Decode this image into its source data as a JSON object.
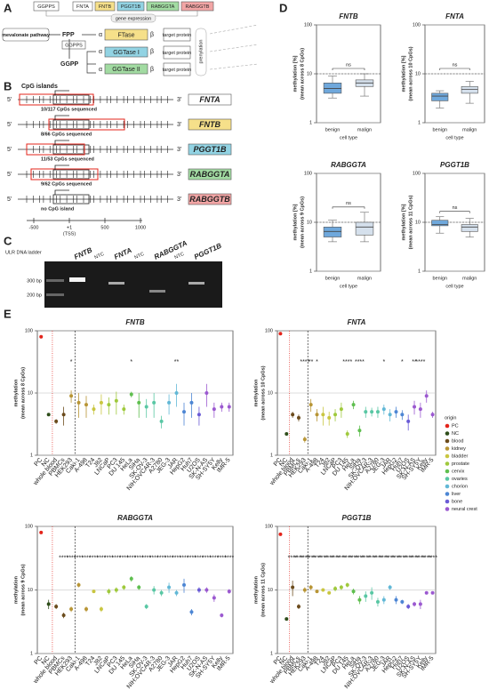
{
  "panel_labels": [
    "A",
    "B",
    "C",
    "D",
    "E"
  ],
  "pathway": {
    "genes": [
      "GGPPS",
      "FNTA",
      "FNTB",
      "PGGT1B",
      "RABGGTA",
      "RABGGTB"
    ],
    "gene_expression": "gene expression",
    "source": "mevalonate pathway",
    "fpp": "FPP",
    "enzyme": "GGPPS",
    "ggpp": "GGPP",
    "alpha": "α",
    "beta": "β",
    "enzymes": [
      "FTase",
      "GGTase I",
      "GGTase II"
    ],
    "target": "target protein",
    "prenylation": "prenylation"
  },
  "cpg": {
    "title": "CpG islands",
    "five": "5'",
    "three": "3'",
    "genes": [
      {
        "name": "FNTA",
        "note": "10/117 CpGs sequenced"
      },
      {
        "name": "FNTB",
        "note": "8/66 CpGs sequenced"
      },
      {
        "name": "PGGT1B",
        "note": "11/53 CpGs sequenced"
      },
      {
        "name": "RABGGTA",
        "note": "9/62 CpGs sequenced"
      },
      {
        "name": "RABGGTB",
        "note": "no CpG island"
      }
    ],
    "axis": [
      "-500",
      "+1",
      "500",
      "1000"
    ],
    "tss": "(TSS)"
  },
  "gel": {
    "ladder": "ULR DNA ladder",
    "sizes": [
      "300 bp",
      "200 bp"
    ],
    "lanes": [
      "FNTB",
      "NTC",
      "FNTA",
      "NTC",
      "RABGGTA",
      "NTC",
      "PGGT1B"
    ]
  },
  "legend": {
    "title": "origin",
    "items": [
      {
        "name": "PC",
        "color": "#e3241b"
      },
      {
        "name": "NC",
        "color": "#2e4d1a"
      },
      {
        "name": "blood",
        "color": "#6b4b1c"
      },
      {
        "name": "kidney",
        "color": "#b89535"
      },
      {
        "name": "bladder",
        "color": "#c9c640"
      },
      {
        "name": "prostate",
        "color": "#9fc93c"
      },
      {
        "name": "cervix",
        "color": "#5fbf4f"
      },
      {
        "name": "ovaries",
        "color": "#59c7a4"
      },
      {
        "name": "chorion",
        "color": "#62b8d6"
      },
      {
        "name": "liver",
        "color": "#4d86d4"
      },
      {
        "name": "bone",
        "color": "#6a5bd6"
      },
      {
        "name": "neural crest",
        "color": "#9b59d0"
      }
    ]
  },
  "chart_data": [
    {
      "type": "box",
      "title": "FNTB",
      "ylabel": [
        "methylation [%]",
        "(mean across 8 CpGs)"
      ],
      "xlabel": "cell type",
      "categories": [
        "benign",
        "malign"
      ],
      "colors": [
        "#6fa8dc",
        "#d5e0ec"
      ],
      "boxes": [
        {
          "min": 3.2,
          "q1": 4,
          "median": 5,
          "q3": 6.5,
          "max": 9
        },
        {
          "min": 3.5,
          "q1": 5.5,
          "median": 6.5,
          "q3": 7.5,
          "max": 10
        }
      ],
      "annotation": "ns",
      "reference_line": 10,
      "log": true,
      "ylim": [
        1,
        100
      ],
      "yticks": [
        1,
        10,
        100
      ],
      "grid": true
    },
    {
      "type": "box",
      "title": "FNTA",
      "ylabel": [
        "methylation [%]",
        "(mean across 10 CpGs)"
      ],
      "xlabel": "cell type",
      "categories": [
        "benign",
        "malign"
      ],
      "colors": [
        "#6fa8dc",
        "#d5e0ec"
      ],
      "boxes": [
        {
          "min": 2,
          "q1": 2.8,
          "median": 3.5,
          "q3": 4,
          "max": 4.5
        },
        {
          "min": 2.5,
          "q1": 4,
          "median": 4.8,
          "q3": 5.5,
          "max": 7
        }
      ],
      "annotation": "ns",
      "reference_line": 10,
      "log": true,
      "ylim": [
        1,
        100
      ],
      "yticks": [
        1,
        10,
        100
      ],
      "grid": true
    },
    {
      "type": "box",
      "title": "RABGGTA",
      "ylabel": [
        "methylation [%]",
        "(mean across 9 CpGs)"
      ],
      "xlabel": "cell type",
      "categories": [
        "benign",
        "malign"
      ],
      "colors": [
        "#6fa8dc",
        "#d5e0ec"
      ],
      "boxes": [
        {
          "min": 4,
          "q1": 5,
          "median": 6.5,
          "q3": 8,
          "max": 11
        },
        {
          "min": 4,
          "q1": 5.5,
          "median": 8,
          "q3": 10,
          "max": 16
        }
      ],
      "annotation": "ns",
      "reference_line": 10,
      "log": true,
      "ylim": [
        1,
        100
      ],
      "yticks": [
        1,
        10,
        100
      ],
      "grid": true
    },
    {
      "type": "box",
      "title": "PGGT1B",
      "ylabel": [
        "methylation [%]",
        "(mean across 11 CpGs)"
      ],
      "xlabel": "cell type",
      "categories": [
        "benign",
        "malign"
      ],
      "colors": [
        "#6fa8dc",
        "#d5e0ec"
      ],
      "boxes": [
        {
          "min": 6,
          "q1": 8.5,
          "median": 9,
          "q3": 11,
          "max": 13
        },
        {
          "min": 5,
          "q1": 6.5,
          "median": 8,
          "q3": 9,
          "max": 12
        }
      ],
      "annotation": "ns",
      "reference_line": 10,
      "log": true,
      "ylim": [
        1,
        100
      ],
      "yticks": [
        1,
        10,
        100
      ],
      "grid": true
    },
    {
      "type": "dot",
      "title": "FNTB",
      "ylabel": [
        "methylation",
        "(mean across 8 CpGs)"
      ],
      "categories": [
        "PC",
        "NC",
        "whole blood",
        "PBMCs",
        "HEK293",
        "Caki-1",
        "A-498",
        "T24",
        "J82",
        "LNCaP",
        "PC3",
        "DU 145",
        "HeLa",
        "SiHa",
        "SK-OV-3",
        "NIH:OVCAR-3",
        "A2780",
        "JEG-3",
        "JAR",
        "HepG2",
        "Huh7",
        "U2OS",
        "SK-N-AS",
        "SH-SY5Y",
        "Kelly",
        "IMR-5"
      ],
      "values": [
        80,
        4.5,
        3.5,
        4.5,
        9,
        7,
        6.5,
        5.5,
        7,
        6.5,
        7.5,
        5.5,
        9.5,
        7,
        6,
        7,
        3.5,
        7,
        10,
        5,
        7,
        4.5,
        10,
        5.5,
        6,
        6
      ],
      "errors": [
        0,
        0,
        0.3,
        1.5,
        2,
        3,
        2.5,
        1,
        2.5,
        2,
        3,
        1,
        1,
        3,
        2,
        3,
        0.8,
        2.5,
        4,
        2,
        3,
        1.5,
        4,
        1.5,
        1,
        1
      ],
      "significance": [
        null,
        null,
        null,
        null,
        "*",
        null,
        null,
        null,
        null,
        null,
        null,
        null,
        "*",
        null,
        null,
        null,
        null,
        null,
        "**",
        null,
        null,
        null,
        null,
        null,
        null,
        null
      ],
      "colors": [
        "#e3241b",
        "#2e4d1a",
        "#6b4b1c",
        "#6b4b1c",
        "#b89535",
        "#b89535",
        "#b89535",
        "#c9c640",
        "#c9c640",
        "#9fc93c",
        "#9fc93c",
        "#9fc93c",
        "#5fbf4f",
        "#5fbf4f",
        "#59c7a4",
        "#59c7a4",
        "#59c7a4",
        "#62b8d6",
        "#62b8d6",
        "#4d86d4",
        "#4d86d4",
        "#6a5bd6",
        "#9b59d0",
        "#9b59d0",
        "#9b59d0",
        "#9b59d0"
      ],
      "log": true,
      "ylim": [
        1,
        100
      ],
      "yticks": [
        1,
        10,
        100
      ],
      "grid": true
    },
    {
      "type": "dot",
      "title": "FNTA",
      "ylabel": [
        "methylation",
        "(mean across 10 CpGs)"
      ],
      "categories": [
        "PC",
        "NC",
        "whole blood",
        "PBMCs",
        "HEK293",
        "Caki-1",
        "A-498",
        "T24",
        "J82",
        "LNCaP",
        "PC3",
        "DU 145",
        "HeLa",
        "SiHa",
        "SK-OV-3",
        "NIH:OVCAR-3",
        "A2780",
        "JEG-3",
        "JAR",
        "HepG2",
        "Huh7",
        "U2OS",
        "SK-N-AS",
        "SH-SY5Y",
        "Kelly",
        "IMR-5"
      ],
      "values": [
        90,
        2.2,
        4.5,
        4,
        1.8,
        6.5,
        4.5,
        4.5,
        4,
        4.5,
        5.5,
        2.2,
        6.5,
        2.5,
        5,
        5,
        5,
        5.5,
        4.5,
        5,
        4.5,
        3.5,
        6,
        5.5,
        9,
        4.5
      ],
      "errors": [
        0,
        0,
        0.5,
        0.5,
        0.2,
        1.5,
        1,
        1.5,
        1,
        1,
        1.5,
        0.3,
        1,
        0.5,
        1,
        0.8,
        1,
        1,
        1,
        1,
        0.8,
        1,
        1.5,
        1.5,
        2,
        0.5
      ],
      "significance": [
        null,
        null,
        null,
        null,
        "****",
        "**",
        "*",
        null,
        null,
        null,
        null,
        "****",
        null,
        "****",
        null,
        null,
        null,
        "*",
        null,
        null,
        "*",
        null,
        "**",
        "****",
        null,
        null
      ],
      "colors": [
        "#e3241b",
        "#2e4d1a",
        "#6b4b1c",
        "#6b4b1c",
        "#b89535",
        "#b89535",
        "#b89535",
        "#c9c640",
        "#c9c640",
        "#9fc93c",
        "#9fc93c",
        "#9fc93c",
        "#5fbf4f",
        "#5fbf4f",
        "#59c7a4",
        "#59c7a4",
        "#59c7a4",
        "#62b8d6",
        "#62b8d6",
        "#4d86d4",
        "#4d86d4",
        "#6a5bd6",
        "#9b59d0",
        "#9b59d0",
        "#9b59d0",
        "#9b59d0"
      ],
      "log": true,
      "ylim": [
        1,
        100
      ],
      "yticks": [
        1,
        10,
        100
      ],
      "grid": true
    },
    {
      "type": "dot",
      "title": "RABGGTA",
      "ylabel": [
        "methylation",
        "(mean across 9 CpGs)"
      ],
      "categories": [
        "PC",
        "NC",
        "whole blood",
        "PBMCs",
        "HEK293",
        "Caki-1",
        "A-498",
        "T24",
        "J82",
        "LNCaP",
        "PC3",
        "DU 145",
        "HeLa",
        "SiHa",
        "SK-OV-3",
        "NIH:OVCAR-3",
        "A2780",
        "JEG-3",
        "JAR",
        "HepG2",
        "Huh7",
        "U2OS",
        "SK-N-AS",
        "SH-SY5Y",
        "Kelly",
        "IMR-5"
      ],
      "values": [
        80,
        6,
        5.5,
        4,
        5,
        12,
        5,
        9.5,
        5,
        9.5,
        10,
        11,
        15,
        11,
        5.5,
        10,
        9,
        11,
        9,
        12,
        4.5,
        10,
        10,
        7.5,
        4,
        9.5
      ],
      "errors": [
        0,
        1,
        0.5,
        0.4,
        0.5,
        1,
        0.5,
        0.5,
        0.5,
        1,
        1,
        1,
        1.5,
        1,
        0.5,
        1.5,
        1,
        2,
        1,
        3,
        0.5,
        1,
        1,
        1,
        0.3,
        0.8
      ],
      "significance": [
        null,
        null,
        null,
        "****",
        "****",
        "****",
        "****",
        "****",
        "****",
        "****",
        "****",
        "****",
        "****",
        "****",
        "****",
        "****",
        "****",
        "****",
        "****",
        "****",
        "****",
        "****",
        "****",
        "****",
        "****",
        "****"
      ],
      "colors": [
        "#e3241b",
        "#2e4d1a",
        "#6b4b1c",
        "#6b4b1c",
        "#b89535",
        "#b89535",
        "#b89535",
        "#c9c640",
        "#c9c640",
        "#9fc93c",
        "#9fc93c",
        "#9fc93c",
        "#5fbf4f",
        "#5fbf4f",
        "#59c7a4",
        "#59c7a4",
        "#59c7a4",
        "#62b8d6",
        "#62b8d6",
        "#4d86d4",
        "#4d86d4",
        "#6a5bd6",
        "#9b59d0",
        "#9b59d0",
        "#9b59d0",
        "#9b59d0"
      ],
      "log": true,
      "ylim": [
        1,
        100
      ],
      "yticks": [
        1,
        10,
        100
      ],
      "grid": true
    },
    {
      "type": "dot",
      "title": "PGGT1B",
      "ylabel": [
        "methylation",
        "(mean across 11 CpGs)"
      ],
      "categories": [
        "PC",
        "NC",
        "whole blood",
        "PBMCs",
        "HEK293",
        "Caki-1",
        "A-498",
        "T24",
        "J82",
        "LNCaP",
        "PC3",
        "DU 145",
        "HeLa",
        "SiHa",
        "SK-OV-3",
        "NIH:OVCAR-3",
        "A2780",
        "JEG-3",
        "JAR",
        "HepG2",
        "Huh7",
        "U2OS",
        "SK-N-AS",
        "SH-SY5Y",
        "Kelly",
        "IMR-5"
      ],
      "values": [
        75,
        3.5,
        11,
        5.5,
        10,
        11,
        9.5,
        10,
        9,
        10.5,
        11,
        12,
        9.5,
        7,
        8,
        9,
        6.5,
        7,
        11,
        7,
        6.5,
        5.5,
        6,
        6,
        9,
        9
      ],
      "errors": [
        0,
        0,
        3,
        0.5,
        1,
        1,
        0.5,
        0.5,
        0.5,
        1,
        1,
        1,
        1,
        1,
        1.5,
        2,
        1,
        1,
        1,
        1,
        0.5,
        0.5,
        0.5,
        1,
        0.5,
        0.5
      ],
      "significance": [
        null,
        null,
        "****",
        "****",
        "****",
        "****",
        "****",
        "****",
        "****",
        "****",
        "****",
        "****",
        "****",
        "****",
        "****",
        "****",
        "****",
        "****",
        "****",
        "****",
        "****",
        "****",
        "****",
        "****",
        "****",
        "****"
      ],
      "colors": [
        "#e3241b",
        "#2e4d1a",
        "#6b4b1c",
        "#6b4b1c",
        "#b89535",
        "#b89535",
        "#b89535",
        "#c9c640",
        "#c9c640",
        "#9fc93c",
        "#9fc93c",
        "#9fc93c",
        "#5fbf4f",
        "#5fbf4f",
        "#59c7a4",
        "#59c7a4",
        "#59c7a4",
        "#62b8d6",
        "#62b8d6",
        "#4d86d4",
        "#4d86d4",
        "#6a5bd6",
        "#9b59d0",
        "#9b59d0",
        "#9b59d0",
        "#9b59d0"
      ],
      "log": true,
      "ylim": [
        1,
        100
      ],
      "yticks": [
        1,
        10,
        100
      ],
      "grid": true
    }
  ]
}
